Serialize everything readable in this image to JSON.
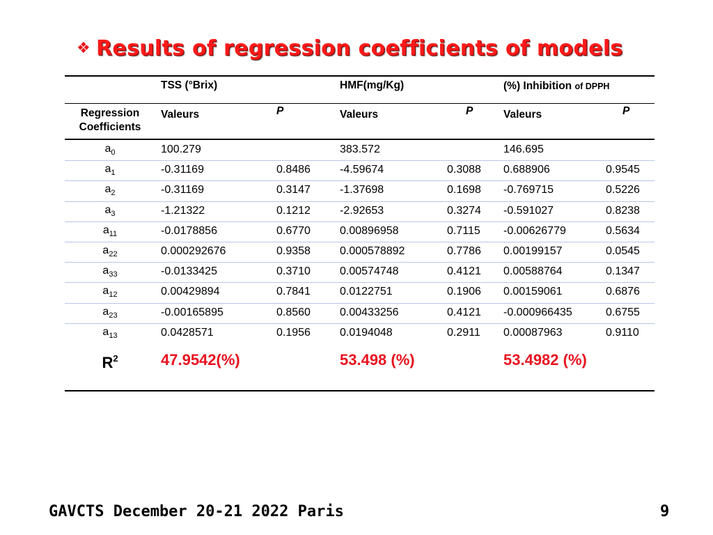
{
  "title": {
    "bullet_icon": "diamond-bullet",
    "text": "Results of regression coefficients of models",
    "color": "#ff1a1a"
  },
  "table": {
    "group_headers": {
      "tss": "TSS (°Brix)",
      "hmf": "HMF(mg/Kg)",
      "inhib_main": "(%) Inhibition",
      "inhib_small": "of DPPH"
    },
    "sub_headers": {
      "coef_line1": "Regression",
      "coef_line2": "Coefficients",
      "valeurs": "Valeurs",
      "p": "P"
    },
    "rows": [
      {
        "base": "a",
        "sub": "0",
        "tss_v": "100.279",
        "tss_p": "",
        "hmf_v": "383.572",
        "hmf_p": "",
        "inh_v": "146.695",
        "inh_p": ""
      },
      {
        "base": "a",
        "sub": "1",
        "tss_v": "-0.31169",
        "tss_p": "0.8486",
        "hmf_v": "-4.59674",
        "hmf_p": "0.3088",
        "inh_v": "0.688906",
        "inh_p": "0.9545"
      },
      {
        "base": "a",
        "sub": "2",
        "tss_v": "-0.31169",
        "tss_p": "0.3147",
        "hmf_v": "-1.37698",
        "hmf_p": "0.1698",
        "inh_v": "-0.769715",
        "inh_p": "0.5226"
      },
      {
        "base": "a",
        "sub": "3",
        "tss_v": "-1.21322",
        "tss_p": "0.1212",
        "hmf_v": "-2.92653",
        "hmf_p": "0.3274",
        "inh_v": "-0.591027",
        "inh_p": "0.8238"
      },
      {
        "base": "a",
        "sub": "11",
        "tss_v": "-0.0178856",
        "tss_p": "0.6770",
        "hmf_v": "0.00896958",
        "hmf_p": "0.7115",
        "inh_v": "-0.00626779",
        "inh_p": "0.5634"
      },
      {
        "base": "a",
        "sub": "22",
        "tss_v": "0.000292676",
        "tss_p": "0.9358",
        "hmf_v": "0.000578892",
        "hmf_p": "0.7786",
        "inh_v": "0.00199157",
        "inh_p": "0.0545"
      },
      {
        "base": "a",
        "sub": "33",
        "tss_v": "-0.0133425",
        "tss_p": "0.3710",
        "hmf_v": "0.00574748",
        "hmf_p": "0.4121",
        "inh_v": "0.00588764",
        "inh_p": "0.1347"
      },
      {
        "base": "a",
        "sub": "12",
        "tss_v": "0.00429894",
        "tss_p": "0.7841",
        "hmf_v": "0.0122751",
        "hmf_p": "0.1906",
        "inh_v": "0.00159061",
        "inh_p": "0.6876"
      },
      {
        "base": "a",
        "sub": "23",
        "tss_v": "-0.00165895",
        "tss_p": "0.8560",
        "hmf_v": "0.00433256",
        "hmf_p": "0.4121",
        "inh_v": "-0.000966435",
        "inh_p": "0.6755"
      },
      {
        "base": "a",
        "sub": "13",
        "tss_v": "0.0428571",
        "tss_p": "0.1956",
        "hmf_v": "0.0194048",
        "hmf_p": "0.2911",
        "inh_v": "0.00087963",
        "inh_p": "0.9110"
      }
    ],
    "r2": {
      "label_base": "R",
      "label_sup": "2",
      "tss": "47.9542(%)",
      "hmf": "53.498 (%)",
      "inh": "53.4982 (%)",
      "color": "#e8121f"
    }
  },
  "footer": {
    "text": "GAVCTS December 20-21 2022 Paris",
    "page": "9"
  }
}
